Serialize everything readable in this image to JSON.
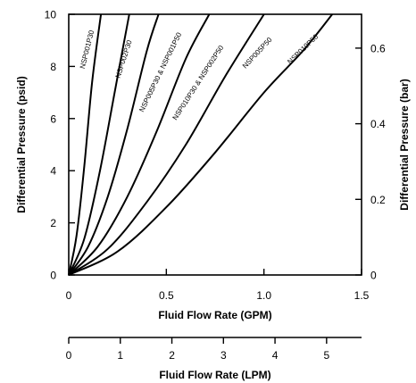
{
  "chart_data": {
    "type": "line",
    "xlabel": "Fluid Flow Rate (GPM)",
    "ylabel": "Differential Pressure (psid)",
    "y2label": "Differential Pressure (bar)",
    "x2label": "Fluid Flow Rate (LPM)",
    "xlim": [
      0,
      1.5
    ],
    "ylim": [
      0,
      10
    ],
    "y2lim": [
      0,
      0.6895
    ],
    "x2lim": [
      0,
      5.678
    ],
    "xticks": [
      "0",
      "0.5",
      "1.0",
      "1.5"
    ],
    "yticks": [
      "0",
      "2",
      "4",
      "6",
      "8",
      "10"
    ],
    "y2ticks": [
      "0",
      "0.2",
      "0.4",
      "0.6"
    ],
    "x2ticks": [
      "0",
      "1",
      "2",
      "3",
      "4",
      "5"
    ],
    "grid": false,
    "series": [
      {
        "name": "NSP001P30",
        "x": [
          0,
          0.04,
          0.08,
          0.12,
          0.165
        ],
        "y": [
          0,
          1.5,
          4.2,
          7.4,
          10
        ]
      },
      {
        "name": "NSP002P30",
        "x": [
          0,
          0.08,
          0.16,
          0.24,
          0.31
        ],
        "y": [
          0,
          1.4,
          4.0,
          7.2,
          10
        ]
      },
      {
        "name": "NSP005P30 & NSP001P50",
        "x": [
          0,
          0.1,
          0.2,
          0.3,
          0.4,
          0.46
        ],
        "y": [
          0,
          1.1,
          3.0,
          5.6,
          8.6,
          10
        ]
      },
      {
        "name": "NSP010P30 & NSP002P50",
        "x": [
          0,
          0.15,
          0.3,
          0.45,
          0.6,
          0.72
        ],
        "y": [
          0,
          1.1,
          3.0,
          5.5,
          8.3,
          10
        ]
      },
      {
        "name": "NSP005P50",
        "x": [
          0,
          0.2,
          0.4,
          0.6,
          0.8,
          1.0
        ],
        "y": [
          0,
          1.0,
          2.8,
          5.0,
          7.6,
          10
        ]
      },
      {
        "name": "NSP010P50",
        "x": [
          0,
          0.25,
          0.5,
          0.75,
          1.0,
          1.2,
          1.35
        ],
        "y": [
          0,
          0.9,
          2.6,
          4.7,
          7.0,
          8.6,
          10
        ]
      }
    ]
  }
}
